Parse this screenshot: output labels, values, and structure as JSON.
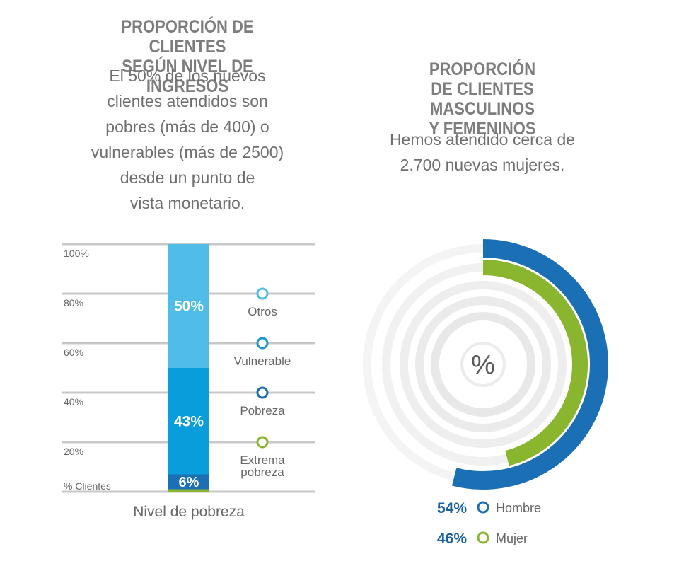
{
  "left": {
    "title_lines": [
      "PROPORCIÓN DE CLIENTES",
      "SEGÚN NIVEL DE INGRESOS"
    ],
    "desc_lines": [
      "El 50% de los nuevos",
      "clientes atendidos son",
      "pobres (más de 400) o",
      "vulnerables (más de 2500)",
      "desde un punto de",
      "vista monetario."
    ]
  },
  "right": {
    "title_lines": [
      "PROPORCIÓN",
      "DE CLIENTES MASCULINOS",
      "Y FEMENINOS"
    ],
    "desc_lines": [
      "Hemos atendido cerca de",
      "2.700 nuevas mujeres."
    ]
  },
  "chart_data": [
    {
      "type": "bar",
      "stacked": true,
      "categories": [
        "Nivel de pobreza"
      ],
      "xlabel": "Nivel de pobreza",
      "ylabel": "% Clientes",
      "ylim": [
        0,
        100
      ],
      "yticks": [
        "20%",
        "40%",
        "60%",
        "80%",
        "100%"
      ],
      "series": [
        {
          "name": "Extrema pobreza",
          "value": 1,
          "label": "",
          "color": "#8ab52e"
        },
        {
          "name": "Pobreza",
          "value": 6,
          "label": "6%",
          "color": "#1b6fb5"
        },
        {
          "name": "Vulnerable",
          "value": 43,
          "label": "43%",
          "color": "#0a9ddc"
        },
        {
          "name": "Otros",
          "value": 50,
          "label": "50%",
          "color": "#4fbde8"
        }
      ],
      "legend": [
        {
          "name": "Otros",
          "color": "#4fbde8"
        },
        {
          "name": "Vulnerable",
          "color": "#1e94d3"
        },
        {
          "name": "Pobreza",
          "color": "#1b6fb5"
        },
        {
          "name": "Extrema pobreza",
          "color": "#8ab52e"
        }
      ]
    },
    {
      "type": "radial",
      "center_label": "%",
      "series": [
        {
          "name": "Hombre",
          "value": 54,
          "label": "54%",
          "color": "#1b6fb5"
        },
        {
          "name": "Mujer",
          "value": 46,
          "label": "46%",
          "color": "#8ab52e"
        }
      ]
    }
  ]
}
